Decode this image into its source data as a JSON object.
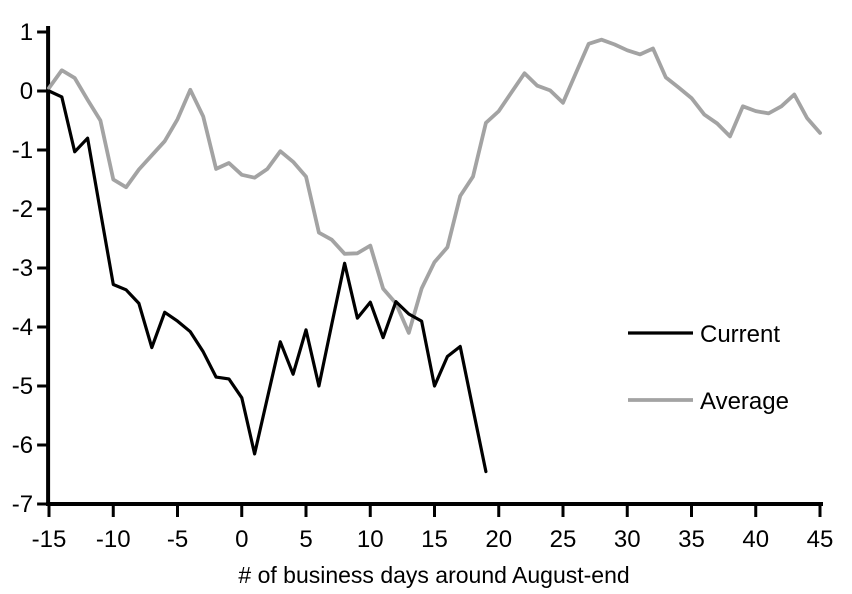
{
  "chart_data": {
    "type": "line",
    "title": "",
    "xlabel": "# of business days around August-end",
    "ylabel": "",
    "xlim": [
      -15,
      45
    ],
    "ylim": [
      -7,
      1
    ],
    "x_ticks": [
      -15,
      -10,
      -5,
      0,
      5,
      10,
      15,
      20,
      25,
      30,
      35,
      40,
      45
    ],
    "y_ticks": [
      1,
      0,
      -1,
      -2,
      -3,
      -4,
      -5,
      -6,
      -7
    ],
    "grid": false,
    "legend_position": "right-middle",
    "series": [
      {
        "name": "Current",
        "color": "#000000",
        "x": [
          -15,
          -14,
          -13,
          -12,
          -11,
          -10,
          -9,
          -8,
          -7,
          -6,
          -5,
          -4,
          -3,
          -2,
          -1,
          0,
          1,
          2,
          3,
          4,
          5,
          6,
          7,
          8,
          9,
          10,
          11,
          12,
          13,
          14,
          15,
          16,
          17,
          18,
          19
        ],
        "values": [
          0.0,
          -0.1,
          -1.03,
          -0.8,
          -2.04,
          -3.28,
          -3.37,
          -3.6,
          -4.35,
          -3.75,
          -3.9,
          -4.08,
          -4.42,
          -4.85,
          -4.88,
          -5.2,
          -6.15,
          -5.2,
          -4.25,
          -4.8,
          -4.05,
          -5.0,
          -3.96,
          -2.92,
          -3.85,
          -3.58,
          -4.18,
          -3.57,
          -3.78,
          -3.9,
          -5.0,
          -4.5,
          -4.33,
          -5.39,
          -6.45
        ]
      },
      {
        "name": "Average",
        "color": "#a3a3a3",
        "x": [
          -15,
          -14,
          -13,
          -12,
          -11,
          -10,
          -9,
          -8,
          -7,
          -6,
          -5,
          -4,
          -3,
          -2,
          -1,
          0,
          1,
          2,
          3,
          4,
          5,
          6,
          7,
          8,
          9,
          10,
          11,
          12,
          13,
          14,
          15,
          16,
          17,
          18,
          19,
          20,
          21,
          22,
          23,
          24,
          25,
          26,
          27,
          28,
          29,
          30,
          31,
          32,
          33,
          34,
          35,
          36,
          37,
          38,
          39,
          40,
          41,
          42,
          43,
          44,
          45
        ],
        "values": [
          0.05,
          0.35,
          0.22,
          -0.15,
          -0.5,
          -1.5,
          -1.63,
          -1.33,
          -1.09,
          -0.85,
          -0.48,
          0.02,
          -0.43,
          -1.32,
          -1.22,
          -1.42,
          -1.47,
          -1.32,
          -1.02,
          -1.2,
          -1.45,
          -2.4,
          -2.52,
          -2.76,
          -2.75,
          -2.62,
          -3.35,
          -3.6,
          -4.1,
          -3.35,
          -2.9,
          -2.65,
          -1.78,
          -1.45,
          -0.54,
          -0.34,
          -0.02,
          0.3,
          0.09,
          0.01,
          -0.2,
          0.3,
          0.8,
          0.87,
          0.79,
          0.69,
          0.62,
          0.72,
          0.23,
          0.06,
          -0.12,
          -0.4,
          -0.55,
          -0.77,
          -0.26,
          -0.34,
          -0.38,
          -0.26,
          -0.06,
          -0.46,
          -0.71
        ]
      }
    ]
  },
  "legend": {
    "items": [
      {
        "label": "Current",
        "color": "#000000"
      },
      {
        "label": "Average",
        "color": "#a3a3a3"
      }
    ]
  },
  "colors": {
    "axis": "#000000",
    "background": "#ffffff",
    "current": "#000000",
    "average": "#a3a3a3"
  }
}
